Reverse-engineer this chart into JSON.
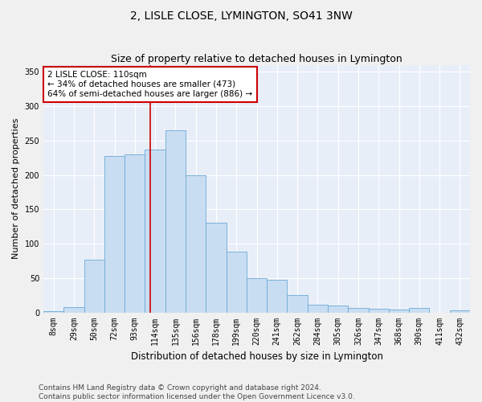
{
  "title": "2, LISLE CLOSE, LYMINGTON, SO41 3NW",
  "subtitle": "Size of property relative to detached houses in Lymington",
  "xlabel": "Distribution of detached houses by size in Lymington",
  "ylabel": "Number of detached properties",
  "categories": [
    "8sqm",
    "29sqm",
    "50sqm",
    "72sqm",
    "93sqm",
    "114sqm",
    "135sqm",
    "156sqm",
    "178sqm",
    "199sqm",
    "220sqm",
    "241sqm",
    "262sqm",
    "284sqm",
    "305sqm",
    "326sqm",
    "347sqm",
    "368sqm",
    "390sqm",
    "411sqm",
    "432sqm"
  ],
  "values": [
    2,
    8,
    77,
    228,
    230,
    237,
    265,
    200,
    130,
    88,
    50,
    48,
    25,
    11,
    10,
    7,
    5,
    4,
    6,
    0,
    3
  ],
  "bar_color": "#c9ddf2",
  "bar_edge_color": "#6aaad4",
  "vline_color": "#cc0000",
  "vline_x": 4.75,
  "annotation_text": "2 LISLE CLOSE: 110sqm\n← 34% of detached houses are smaller (473)\n64% of semi-detached houses are larger (886) →",
  "annotation_box_color": "#ffffff",
  "annotation_box_edge": "#cc0000",
  "ylim": [
    0,
    360
  ],
  "yticks": [
    0,
    50,
    100,
    150,
    200,
    250,
    300,
    350
  ],
  "bg_color": "#e8eef8",
  "fig_bg_color": "#f0f0f0",
  "grid_color": "#ffffff",
  "footer": "Contains HM Land Registry data © Crown copyright and database right 2024.\nContains public sector information licensed under the Open Government Licence v3.0.",
  "title_fontsize": 10,
  "subtitle_fontsize": 9,
  "xlabel_fontsize": 8.5,
  "ylabel_fontsize": 8,
  "tick_fontsize": 7,
  "annotation_fontsize": 7.5,
  "footer_fontsize": 6.5
}
